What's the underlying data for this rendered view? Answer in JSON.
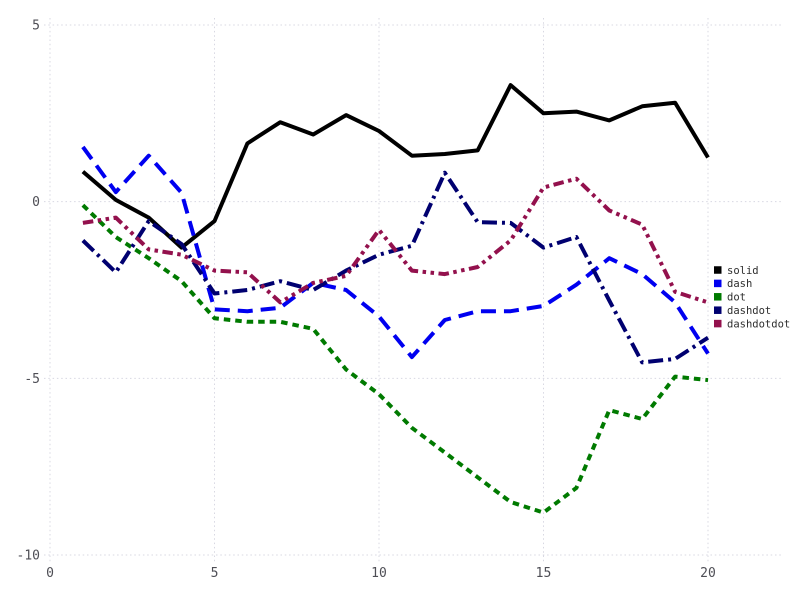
{
  "chart_data": {
    "type": "line",
    "title": "",
    "xlabel": "",
    "ylabel": "",
    "xlim": [
      0,
      20
    ],
    "ylim": [
      -10,
      5
    ],
    "x_ticks": [
      "0",
      "5",
      "10",
      "15",
      "20"
    ],
    "x_tick_values": [
      0,
      5,
      10,
      15,
      20
    ],
    "y_ticks": [
      "5",
      "0",
      "-5",
      "-10"
    ],
    "y_tick_values": [
      5,
      0,
      -5,
      -10
    ],
    "grid": "dotted",
    "legend_position": "right",
    "x": [
      1,
      2,
      3,
      4,
      5,
      6,
      7,
      8,
      9,
      10,
      11,
      12,
      13,
      14,
      15,
      16,
      17,
      18,
      19,
      20
    ],
    "series": [
      {
        "name": "solid",
        "color": "#000000",
        "dash": "solid",
        "values": [
          0.85,
          0.05,
          -0.45,
          -1.3,
          -0.55,
          1.65,
          2.25,
          1.9,
          2.45,
          2.0,
          1.3,
          1.35,
          1.45,
          3.3,
          2.5,
          2.55,
          2.3,
          2.7,
          2.8,
          1.25
        ]
      },
      {
        "name": "dash",
        "color": "#0000f0",
        "dash": "dash",
        "values": [
          1.55,
          0.27,
          1.3,
          0.25,
          -3.05,
          -3.1,
          -3.0,
          -2.3,
          -2.5,
          -3.25,
          -4.4,
          -3.35,
          -3.1,
          -3.1,
          -2.95,
          -2.35,
          -1.6,
          -2.05,
          -2.85,
          -4.3
        ]
      },
      {
        "name": "dot",
        "color": "#007a00",
        "dash": "dot",
        "values": [
          -0.1,
          -1.0,
          -1.6,
          -2.25,
          -3.3,
          -3.4,
          -3.4,
          -3.6,
          -4.75,
          -5.45,
          -6.4,
          -7.1,
          -7.8,
          -8.5,
          -8.8,
          -8.1,
          -5.9,
          -6.15,
          -4.95,
          -5.05
        ]
      },
      {
        "name": "dashdot",
        "color": "#000070",
        "dash": "dashdot",
        "values": [
          -1.1,
          -2.0,
          -0.55,
          -1.2,
          -2.6,
          -2.5,
          -2.25,
          -2.5,
          -1.95,
          -1.5,
          -1.25,
          0.82,
          -0.58,
          -0.6,
          -1.3,
          -1.0,
          -2.8,
          -4.55,
          -4.45,
          -3.85
        ]
      },
      {
        "name": "dashdotdot",
        "color": "#93114d",
        "dash": "dashdotdot",
        "values": [
          -0.6,
          -0.45,
          -1.35,
          -1.5,
          -1.95,
          -2.0,
          -2.85,
          -2.3,
          -2.1,
          -0.8,
          -1.95,
          -2.05,
          -1.85,
          -1.1,
          0.4,
          0.65,
          -0.25,
          -0.65,
          -2.55,
          -2.85
        ]
      }
    ],
    "legend_items": [
      "solid",
      "dash",
      "dot",
      "dashdot",
      "dashdotdot"
    ]
  },
  "colors": {
    "background": "#ffffff",
    "grid": "#d8d8e2",
    "tick_label": "#4e4e55",
    "legend_label": "#2e2e2e"
  }
}
